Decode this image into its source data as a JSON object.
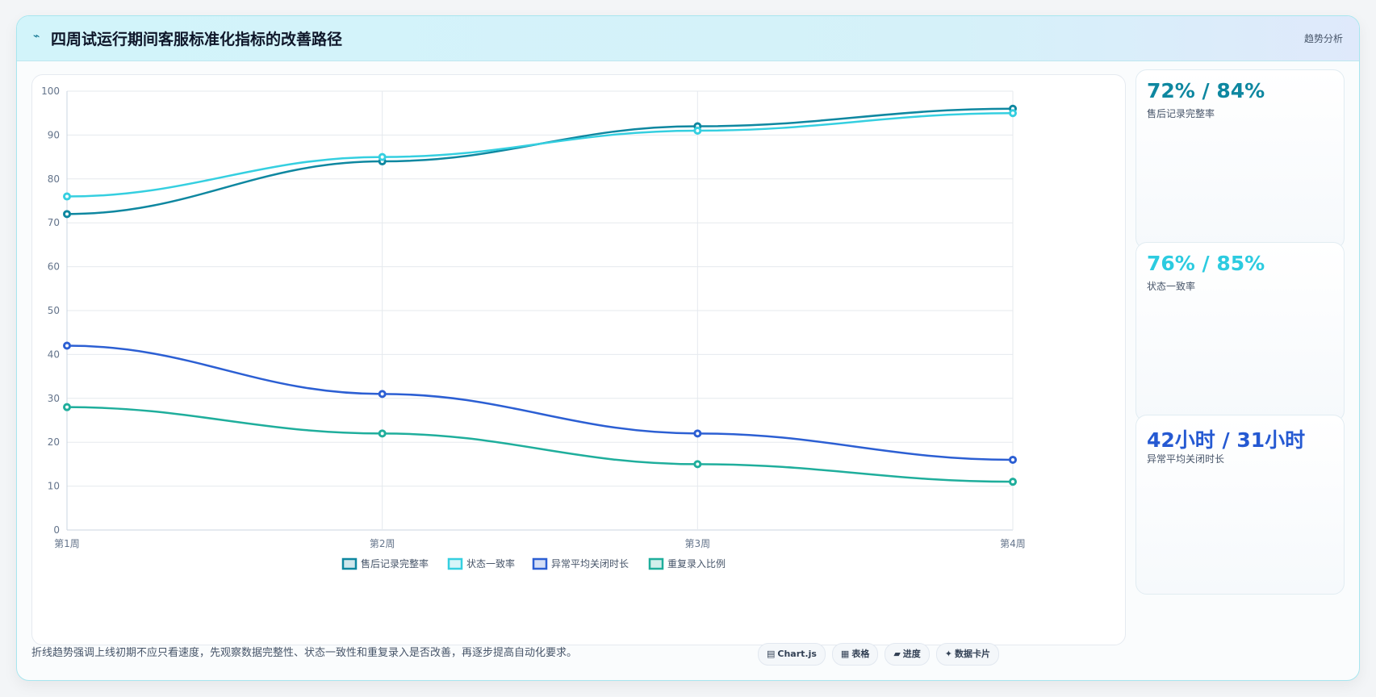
{
  "header": {
    "icon": "trend-line-icon",
    "title": "四周试运行期间客服标准化指标的改善路径",
    "badge": "趋势分析"
  },
  "chart_data": {
    "type": "line",
    "categories": [
      "第1周",
      "第2周",
      "第3周",
      "第4周"
    ],
    "ylim": [
      0,
      100
    ],
    "yticks": [
      0,
      10,
      20,
      30,
      40,
      50,
      60,
      70,
      80,
      90,
      100
    ],
    "grid": true,
    "legend": "bottom",
    "series": [
      {
        "name": "售后记录完整率",
        "values": [
          72,
          84,
          92,
          96
        ],
        "color": "#0e87a0"
      },
      {
        "name": "状态一致率",
        "values": [
          76,
          85,
          91,
          95
        ],
        "color": "#35cfe0"
      },
      {
        "name": "异常平均关闭时长",
        "values": [
          42,
          31,
          22,
          16
        ],
        "color": "#2c5fd3"
      },
      {
        "name": "重复录入比例",
        "values": [
          28,
          22,
          15,
          11
        ],
        "color": "#1fae9c"
      }
    ]
  },
  "stats": [
    {
      "value": "72% / 84%",
      "label": "售后记录完整率",
      "color": "#0e87a0"
    },
    {
      "value": "76% / 85%",
      "label": "状态一致率",
      "color": "#2ccbe0"
    },
    {
      "value": "42小时 / 31小时",
      "label": "异常平均关闭时长",
      "color": "#2559d2"
    }
  ],
  "footnote": "折线趋势强调上线初期不应只看速度，先观察数据完整性、状态一致性和重复录入是否改善，再逐步提高自动化要求。",
  "tags": [
    {
      "icon": "▤",
      "label": "Chart.js"
    },
    {
      "icon": "▦",
      "label": "表格"
    },
    {
      "icon": "▰",
      "label": "进度"
    },
    {
      "icon": "✦",
      "label": "数据卡片"
    }
  ]
}
